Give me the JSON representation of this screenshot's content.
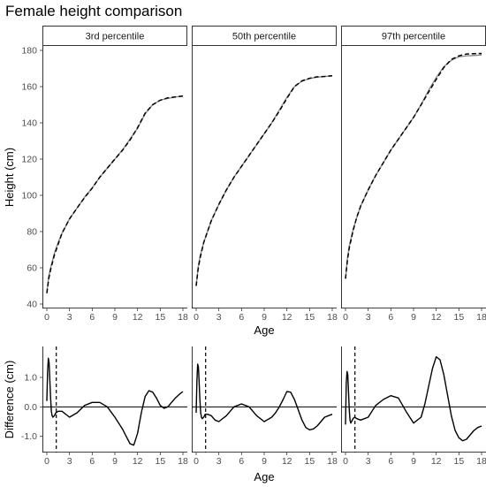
{
  "chart_data": {
    "type": "line",
    "title": "Female height comparison",
    "panels": [
      "3rd percentile",
      "50th percentile",
      "97th percentile"
    ],
    "top": {
      "ylabel": "Height (cm)",
      "xlabel": "Age",
      "xlim": [
        0,
        18
      ],
      "ylim": [
        40,
        180
      ],
      "xticks": [
        0,
        3,
        6,
        9,
        12,
        15,
        18
      ],
      "yticks": [
        40,
        60,
        80,
        100,
        120,
        140,
        160,
        180
      ],
      "series": [
        {
          "panel": "3rd percentile",
          "x": [
            0,
            0.25,
            0.5,
            1,
            1.5,
            2,
            3,
            4,
            5,
            6,
            7,
            8,
            9,
            10,
            11,
            12,
            13,
            14,
            15,
            16,
            17,
            18
          ],
          "solid": [
            46,
            55,
            60,
            68,
            74,
            79,
            87,
            93,
            99,
            104,
            110,
            115,
            120,
            125,
            131,
            137,
            145,
            150,
            152.5,
            153.5,
            154.3,
            154.8
          ],
          "dashed": [
            46,
            54,
            59,
            67,
            73,
            79,
            87,
            93,
            98.8,
            104,
            110,
            115,
            120,
            124.8,
            130.5,
            137.3,
            145.3,
            150,
            152.5,
            153.8,
            154.3,
            154.8
          ]
        },
        {
          "panel": "50th percentile",
          "x": [
            0,
            0.25,
            0.5,
            1,
            1.5,
            2,
            3,
            4,
            5,
            6,
            7,
            8,
            9,
            10,
            11,
            12,
            13,
            14,
            15,
            16,
            17,
            18
          ],
          "solid": [
            50,
            60,
            66,
            74,
            80,
            86,
            95,
            103,
            110,
            116,
            122,
            128,
            134,
            140,
            147,
            154,
            160,
            163,
            164.5,
            165.2,
            165.6,
            166
          ],
          "dashed": [
            50,
            59,
            65,
            74,
            80,
            86,
            95,
            103,
            110,
            116,
            122,
            128,
            134,
            140,
            146.5,
            153.5,
            160,
            163.2,
            164.6,
            165.4,
            165.6,
            166
          ]
        },
        {
          "panel": "97th percentile",
          "x": [
            0,
            0.25,
            0.5,
            1,
            1.5,
            2,
            3,
            4,
            5,
            6,
            7,
            8,
            9,
            10,
            11,
            12,
            13,
            14,
            15,
            16,
            17,
            18
          ],
          "solid": [
            54,
            65,
            72,
            81,
            88,
            94,
            103,
            111,
            118,
            125,
            131,
            137,
            143,
            150,
            158,
            165,
            171,
            174.5,
            176.5,
            177,
            177.2,
            177.5
          ],
          "dashed": [
            54,
            64,
            71,
            80.5,
            88,
            94,
            103,
            111,
            118,
            125,
            131,
            137,
            143,
            150,
            157,
            164,
            170.5,
            175,
            177,
            178,
            178.2,
            178.3
          ]
        }
      ]
    },
    "bottom": {
      "ylabel": "Difference (cm)",
      "xlabel": "Age",
      "xlim": [
        0,
        18
      ],
      "ylim": [
        -1.4,
        1.9
      ],
      "xticks": [
        0,
        3,
        6,
        9,
        12,
        15,
        18
      ],
      "yticks": [
        -1.0,
        0.0,
        1.0
      ],
      "ytick_labels": [
        "-1.0",
        "0.0",
        "1.0"
      ],
      "hline": 0,
      "vline": 1.25,
      "series": [
        {
          "panel": "3rd percentile",
          "x": [
            0,
            0.1,
            0.2,
            0.3,
            0.4,
            0.5,
            0.6,
            0.7,
            0.8,
            1.0,
            1.2,
            1.5,
            2,
            2.5,
            3,
            4,
            5,
            6,
            7,
            8,
            9,
            10,
            10.5,
            11,
            11.5,
            12,
            12.5,
            13,
            13.5,
            14,
            14.5,
            15,
            15.5,
            16,
            16.5,
            17,
            17.5,
            18
          ],
          "y": [
            0.2,
            1.2,
            1.65,
            1.5,
            0.9,
            0.3,
            -0.15,
            -0.3,
            -0.35,
            -0.3,
            -0.2,
            -0.15,
            -0.15,
            -0.25,
            -0.35,
            -0.2,
            0.05,
            0.15,
            0.15,
            0.0,
            -0.35,
            -0.75,
            -1.0,
            -1.25,
            -1.3,
            -0.9,
            -0.2,
            0.35,
            0.55,
            0.5,
            0.3,
            0.05,
            -0.05,
            0.0,
            0.15,
            0.3,
            0.42,
            0.52
          ]
        },
        {
          "panel": "50th percentile",
          "x": [
            0,
            0.1,
            0.2,
            0.3,
            0.4,
            0.5,
            0.6,
            0.7,
            0.8,
            1.0,
            1.2,
            1.5,
            2,
            2.5,
            3,
            4,
            5,
            6,
            7,
            8,
            9,
            10,
            10.5,
            11,
            11.5,
            12,
            12.5,
            13,
            13.5,
            14,
            14.5,
            15,
            15.5,
            16,
            16.5,
            17,
            17.5,
            18
          ],
          "y": [
            -0.2,
            0.9,
            1.45,
            1.35,
            0.8,
            0.2,
            -0.2,
            -0.35,
            -0.4,
            -0.35,
            -0.25,
            -0.25,
            -0.3,
            -0.45,
            -0.5,
            -0.3,
            0.0,
            0.1,
            0.0,
            -0.3,
            -0.5,
            -0.35,
            -0.2,
            0.0,
            0.25,
            0.52,
            0.5,
            0.25,
            -0.1,
            -0.45,
            -0.7,
            -0.78,
            -0.75,
            -0.65,
            -0.5,
            -0.35,
            -0.3,
            -0.25
          ]
        },
        {
          "panel": "97th percentile",
          "x": [
            0,
            0.1,
            0.2,
            0.3,
            0.4,
            0.5,
            0.6,
            0.7,
            0.8,
            1.0,
            1.2,
            1.5,
            2,
            2.5,
            3,
            4,
            5,
            6,
            7,
            8,
            9,
            10,
            10.5,
            11,
            11.5,
            12,
            12.5,
            13,
            13.5,
            14,
            14.5,
            15,
            15.5,
            16,
            16.5,
            17,
            17.5,
            18
          ],
          "y": [
            -0.6,
            0.8,
            1.2,
            1.1,
            0.5,
            -0.1,
            -0.45,
            -0.55,
            -0.5,
            -0.4,
            -0.35,
            -0.4,
            -0.45,
            -0.4,
            -0.35,
            0.05,
            0.25,
            0.38,
            0.3,
            -0.15,
            -0.55,
            -0.35,
            0.1,
            0.7,
            1.3,
            1.7,
            1.6,
            1.1,
            0.4,
            -0.3,
            -0.8,
            -1.05,
            -1.15,
            -1.1,
            -0.95,
            -0.8,
            -0.7,
            -0.65
          ]
        }
      ]
    }
  }
}
